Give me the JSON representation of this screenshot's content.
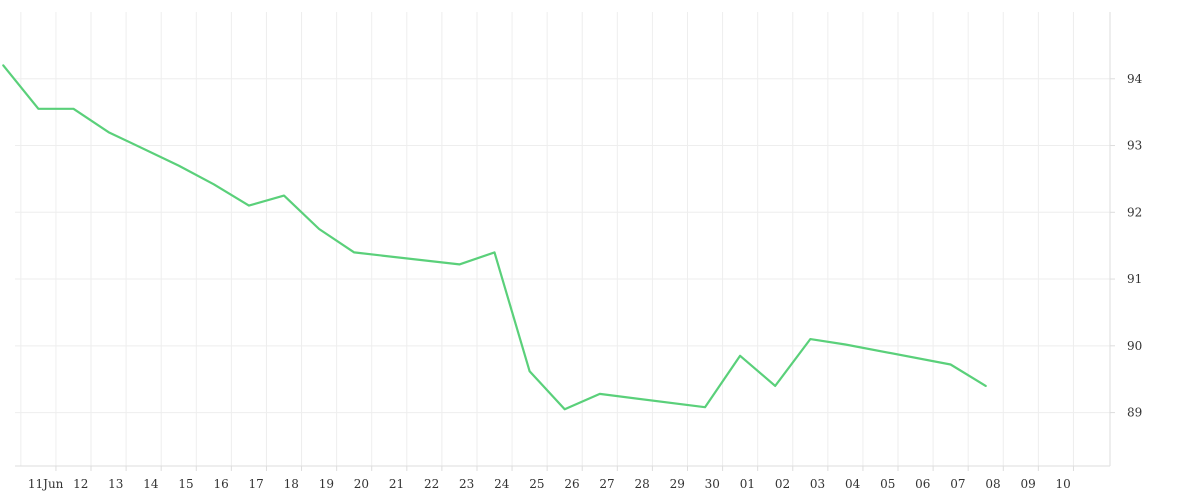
{
  "chart_data": {
    "type": "line",
    "x": [
      "2025-06-10",
      "2025-06-11",
      "2025-06-12",
      "2025-06-13",
      "2025-06-15",
      "2025-06-16",
      "2025-06-17",
      "2025-06-18",
      "2025-06-19",
      "2025-06-20",
      "2025-06-23",
      "2025-06-24",
      "2025-06-25",
      "2025-06-26",
      "2025-06-27",
      "2025-06-30",
      "2025-07-01",
      "2025-07-02",
      "2025-07-03",
      "2025-07-04",
      "2025-07-07",
      "2025-07-08"
    ],
    "series": [
      {
        "name": "",
        "color": "#5ad07a",
        "values": [
          94.2,
          93.55,
          93.55,
          93.2,
          92.7,
          92.42,
          92.1,
          92.25,
          91.75,
          91.4,
          91.22,
          91.4,
          89.62,
          89.05,
          89.28,
          89.08,
          89.85,
          89.4,
          90.1,
          90.02,
          89.72,
          89.4
        ]
      }
    ],
    "x_ticks": [
      "11Jun",
      "12",
      "13",
      "14",
      "15",
      "16",
      "17",
      "18",
      "19",
      "20",
      "21",
      "22",
      "23",
      "24",
      "25",
      "26",
      "27",
      "28",
      "29",
      "30",
      "01",
      "02",
      "03",
      "04",
      "05",
      "06",
      "07",
      "08",
      "09",
      "10"
    ],
    "y_ticks": [
      89,
      90,
      91,
      92,
      93,
      94
    ],
    "xlim": [
      "2025-06-09T20:00",
      "2025-07-11T01:00"
    ],
    "ylim": [
      88.2,
      95.0
    ],
    "y_axis_position": "right",
    "grid": true,
    "title": "",
    "xlabel": "",
    "ylabel": ""
  }
}
